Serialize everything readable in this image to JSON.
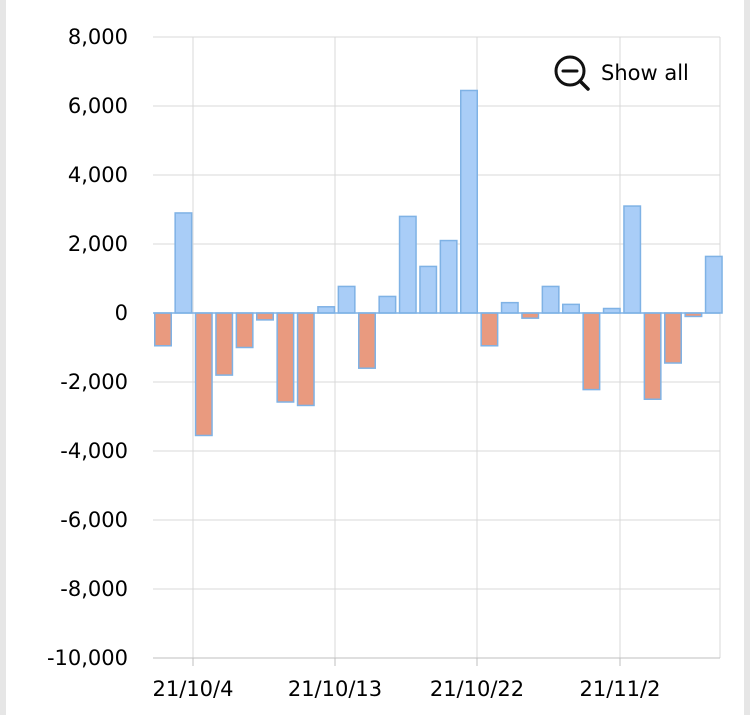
{
  "toolbar": {
    "show_all_label": "Show all",
    "zoom_icon": "zoom-out-icon"
  },
  "colors": {
    "positive_fill": "#a9cdf7",
    "positive_stroke": "#7fb2e5",
    "negative_fill": "#e99a7f",
    "negative_stroke": "#7fb2e5",
    "grid": "#d9d9d9",
    "axis": "#bfbfbf"
  },
  "chart_data": {
    "type": "bar",
    "title": "",
    "xlabel": "",
    "ylabel": "",
    "ylim": [
      -10000,
      8000
    ],
    "yticks": [
      8000,
      6000,
      4000,
      2000,
      0,
      -2000,
      -4000,
      -6000,
      -8000,
      -10000
    ],
    "ytick_labels": [
      "8,000",
      "6,000",
      "4,000",
      "2,000",
      "0",
      "-2,000",
      "-4,000",
      "-6,000",
      "-8,000",
      "-10,000"
    ],
    "xtick_labels": [
      "21/10/4",
      "21/10/13",
      "21/10/22",
      "21/11/2"
    ],
    "grid": true,
    "values": [
      -950,
      2900,
      -3550,
      -1800,
      -1000,
      -200,
      -2580,
      -2680,
      180,
      770,
      -1600,
      480,
      2800,
      1350,
      2100,
      6450,
      -950,
      300,
      -150,
      770,
      250,
      -2220,
      130,
      3100,
      -2500,
      -1450,
      -100,
      1640
    ]
  }
}
